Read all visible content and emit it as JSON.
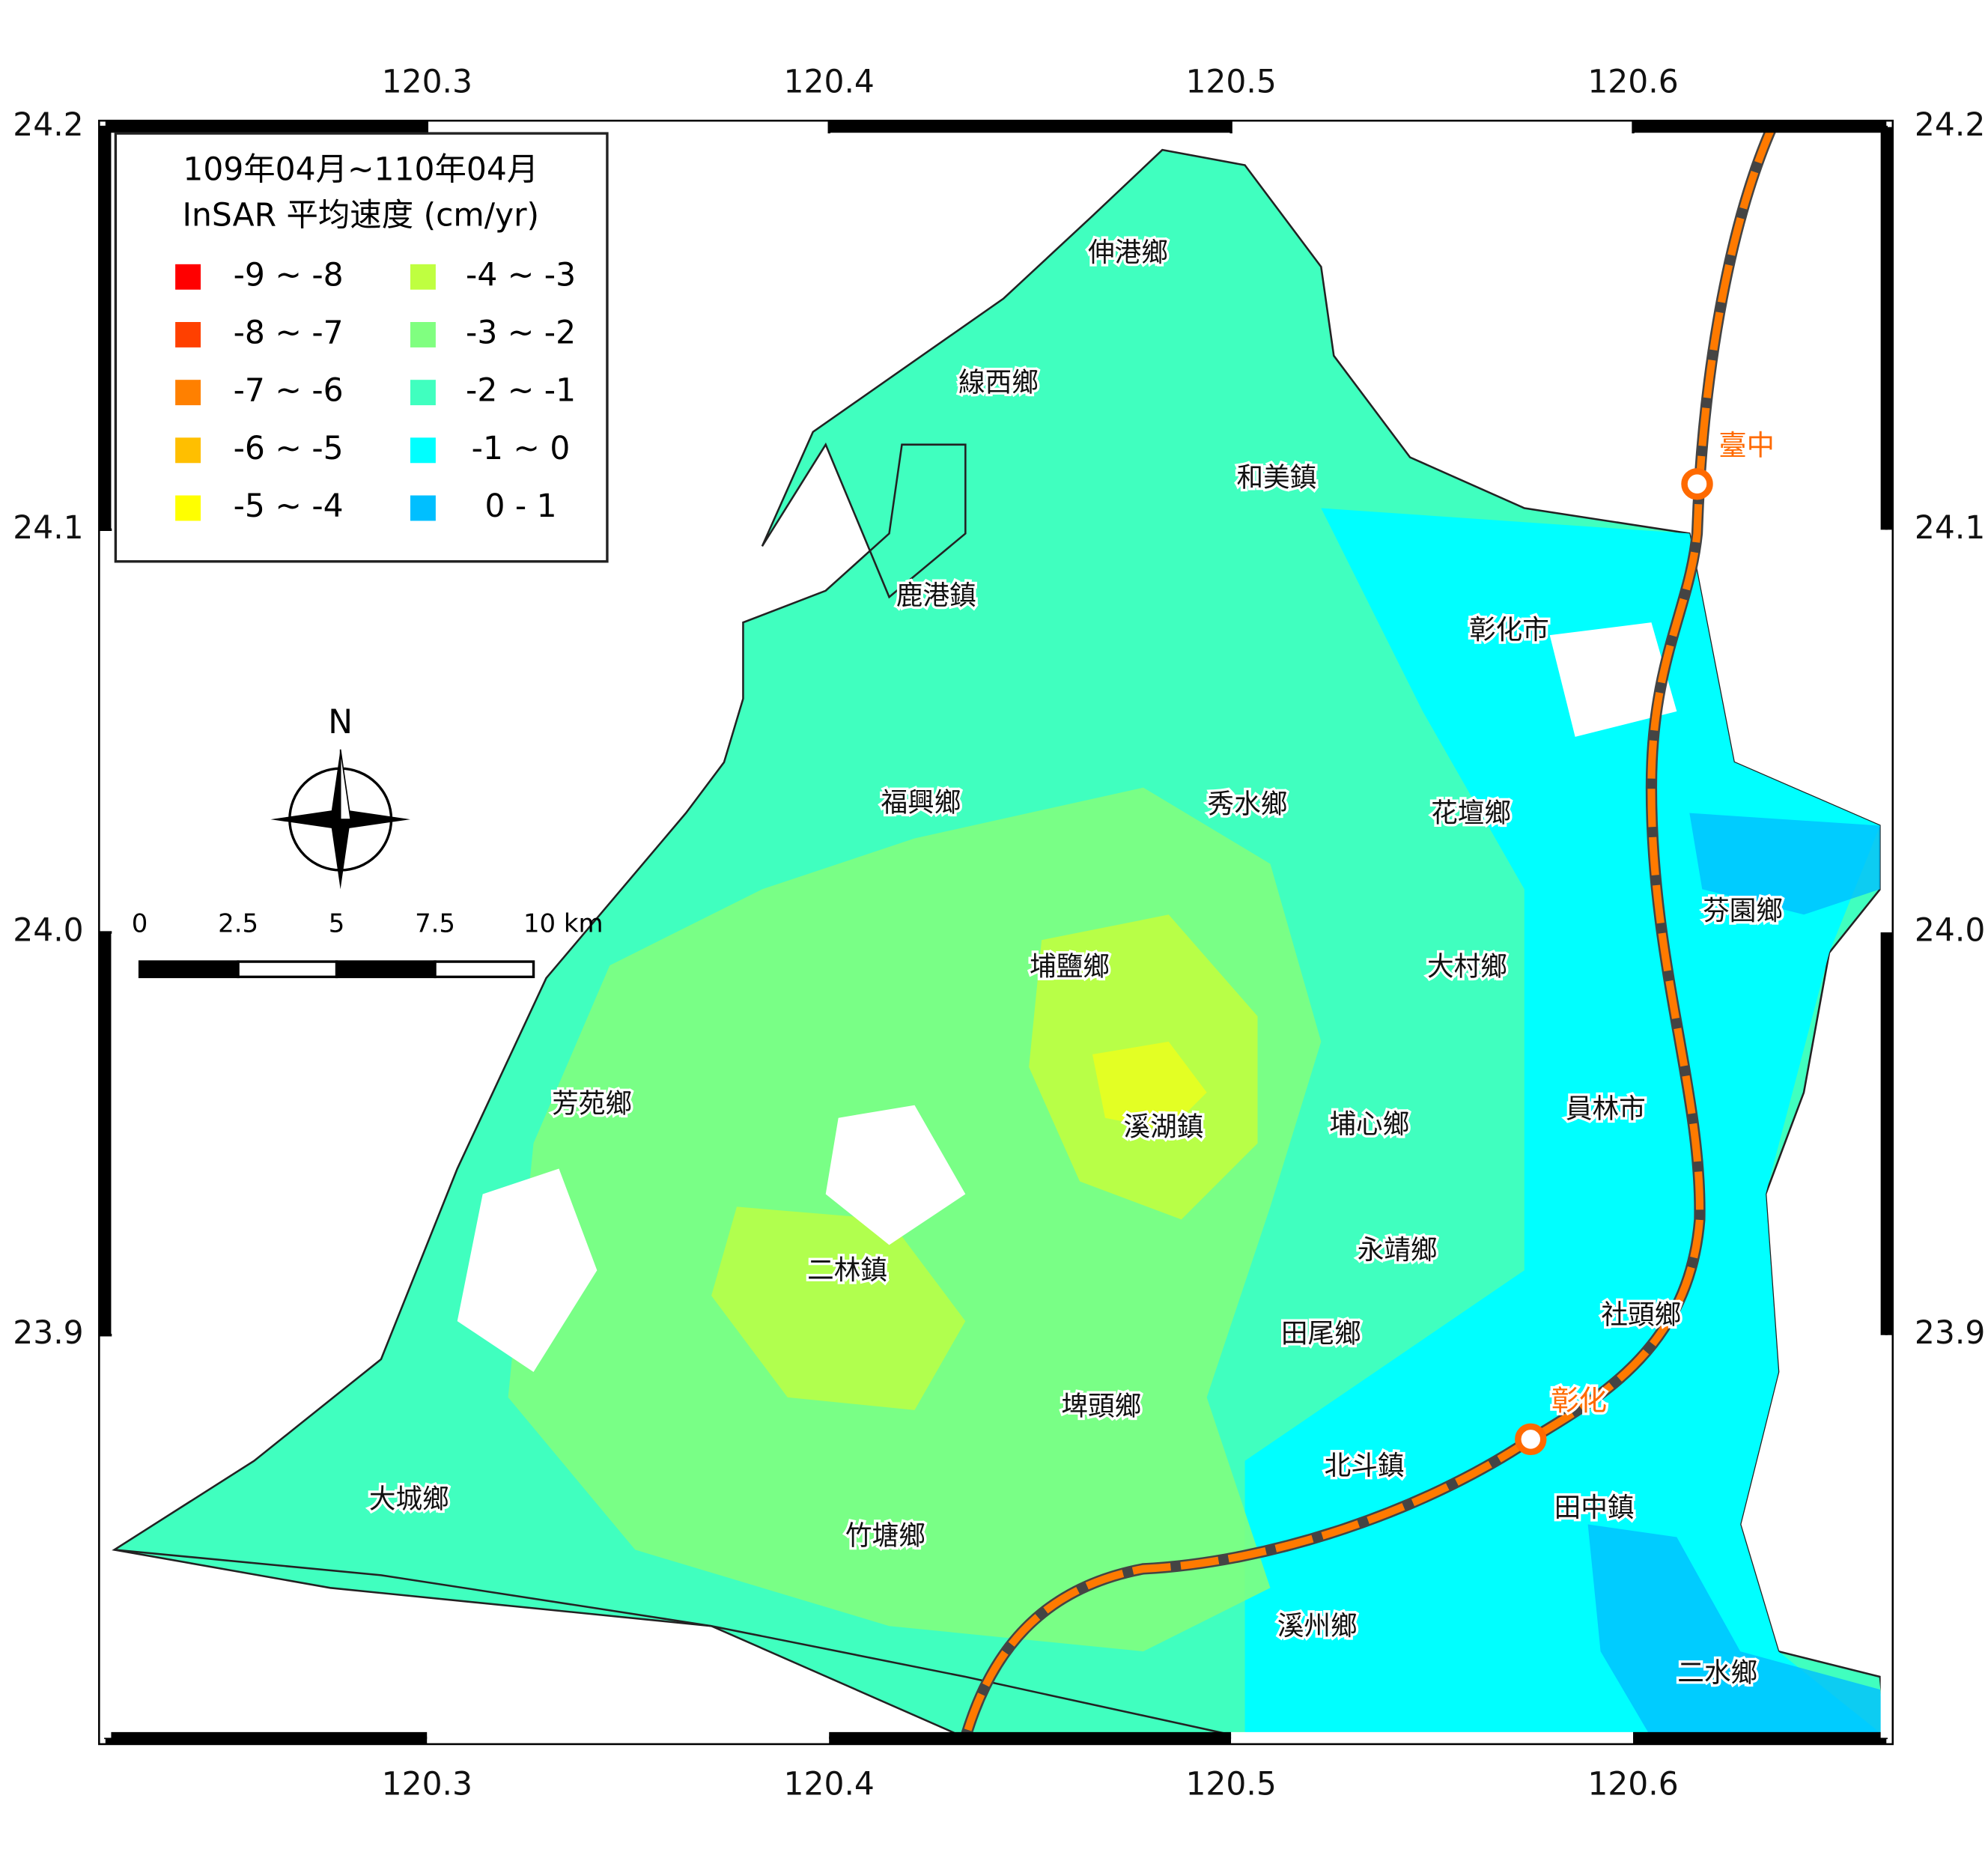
{
  "map": {
    "legend": {
      "title": [
        "109年04月~110年04月",
        "InSAR 平均速度 (cm/yr)"
      ],
      "items": [
        {
          "label": "-9 ~ -8",
          "color": "#ff0000"
        },
        {
          "label": "-8 ~ -7",
          "color": "#ff4000"
        },
        {
          "label": "-7 ~ -6",
          "color": "#ff8000"
        },
        {
          "label": "-6 ~ -5",
          "color": "#ffbf00"
        },
        {
          "label": "-5 ~ -4",
          "color": "#ffff00"
        },
        {
          "label": "-4 ~ -3",
          "color": "#bfff40"
        },
        {
          "label": "-3 ~ -2",
          "color": "#80ff80"
        },
        {
          "label": "-2 ~ -1",
          "color": "#40ffbf"
        },
        {
          "label": "-1 ~ 0",
          "color": "#00ffff"
        },
        {
          "label": "0 - 1",
          "color": "#00bfff"
        }
      ]
    },
    "xlim": [
      120.22,
      120.663
    ],
    "ylim": [
      23.8,
      24.2
    ],
    "xticks": [
      120.3,
      120.4,
      120.5,
      120.6
    ],
    "yticks": [
      23.9,
      {
        "value": 24,
        "label": "24.0"
      },
      24.1,
      24.2
    ],
    "north": "N",
    "scale_bar": {
      "ticks": [
        0,
        2.5,
        5,
        7.5,
        {
          "value": 10,
          "label": "10 km"
        }
      ]
    },
    "townships": [
      "伸港鄉",
      "線西鄉",
      "和美鎮",
      "鹿港鎮",
      "彰化市",
      "福興鄉",
      "秀水鄉",
      "花壇鄉",
      "芬園鄉",
      "埔鹽鄉",
      "大村鄉",
      "芳苑鄉",
      "溪湖鎮",
      "埔心鄉",
      "員林市",
      "永靖鄉",
      "二林鎮",
      "社頭鄉",
      "田尾鄉",
      "埤頭鄉",
      "北斗鎮",
      "大城鄉",
      "田中鎮",
      "竹塘鄉",
      "溪州鄉",
      "二水鄉"
    ],
    "stations": [
      "臺中",
      "彰化"
    ]
  }
}
